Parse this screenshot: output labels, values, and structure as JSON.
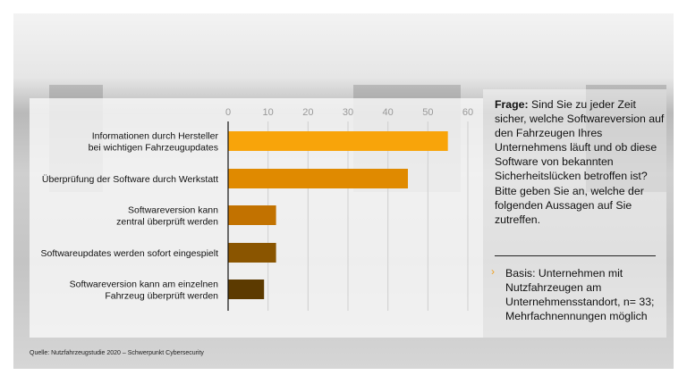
{
  "chart_data": {
    "type": "bar",
    "orientation": "horizontal",
    "categories": [
      [
        "Informationen durch Hersteller",
        "bei wichtigen Fahrzeugupdates"
      ],
      [
        "Überprüfung der Software durch Werkstatt"
      ],
      [
        "Softwareversion kann",
        "zentral überprüft werden"
      ],
      [
        "Softwareupdates werden sofort eingespielt"
      ],
      [
        "Softwareversion kann am einzelnen",
        "Fahrzeug überprüft werden"
      ]
    ],
    "values": [
      55,
      45,
      12,
      12,
      9
    ],
    "colors": [
      "#f8a40a",
      "#e08a00",
      "#c27200",
      "#8a5500",
      "#5c3a00"
    ],
    "xlim": [
      0,
      60
    ],
    "xticks": [
      0,
      10,
      20,
      30,
      40,
      50,
      60
    ],
    "axis_position": "top",
    "grid": true,
    "title": "",
    "xlabel": "",
    "ylabel": ""
  },
  "question": {
    "label": "Frage:",
    "text": " Sind Sie zu jeder Zeit sicher, welche Softwareversion auf den Fahrzeugen Ihres Unternehmens läuft und ob diese Software von bekannten Sicherheitslücken betroffen ist? Bitte geben Sie an, welche der folgenden Aussagen auf Sie zutreffen."
  },
  "basis": "Basis: Unternehmen mit Nutzfahrzeugen am Unternehmensstandort, n= 33; Mehrfachnennungen möglich",
  "source": "Quelle: Nutzfahrzeugstudie 2020 – Schwerpunkt Cybersecurity"
}
